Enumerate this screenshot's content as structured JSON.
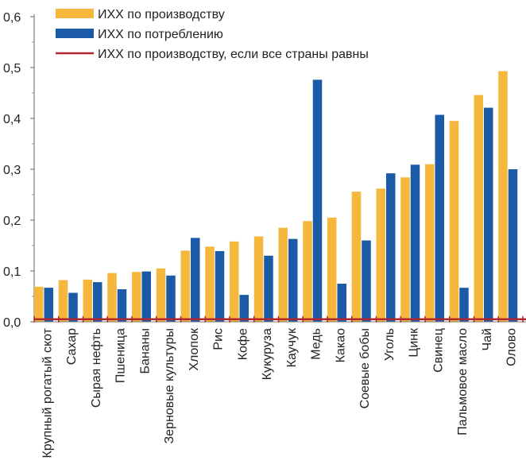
{
  "chart_data": {
    "type": "bar",
    "categories": [
      "Крупный рогатый скот",
      "Сахар",
      "Сырая нефть",
      "Пшеница",
      "Бананы",
      "Зерновые культуры",
      "Хлопок",
      "Рис",
      "Кофе",
      "Кукуруза",
      "Каучук",
      "Медь",
      "Какао",
      "Соевые бобы",
      "Уголь",
      "Цинк",
      "Свинец",
      "Пальмовое масло",
      "Чай",
      "Олово"
    ],
    "series": [
      {
        "name": "ИХХ по производству",
        "color": "#F5B73C",
        "values": [
          0.069,
          0.082,
          0.083,
          0.096,
          0.098,
          0.105,
          0.14,
          0.148,
          0.158,
          0.168,
          0.185,
          0.198,
          0.205,
          0.256,
          0.262,
          0.284,
          0.31,
          0.395,
          0.446,
          0.493
        ]
      },
      {
        "name": "ИХХ по потреблению",
        "color": "#1B5AA6",
        "values": [
          0.067,
          0.057,
          0.078,
          0.064,
          0.099,
          0.091,
          0.165,
          0.139,
          0.053,
          0.13,
          0.163,
          0.476,
          0.075,
          0.16,
          0.292,
          0.309,
          0.407,
          0.067,
          0.421,
          0.3
        ]
      }
    ],
    "reference_line": {
      "name": "ИХХ по производству, если все страны равны",
      "color": "#B0272D",
      "value": 0.005
    },
    "yticks": [
      "0,0",
      "0,1",
      "0,2",
      "0,3",
      "0,4",
      "0,5",
      "0,6"
    ],
    "ylim": [
      0,
      0.6
    ],
    "legend_position": "top-left",
    "grid": false
  }
}
